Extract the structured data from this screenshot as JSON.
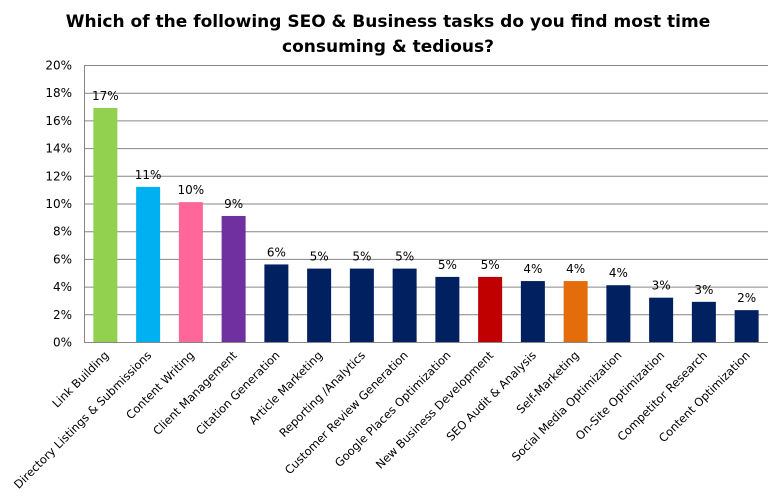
{
  "chart_data": {
    "type": "bar",
    "title_line1": "Which of the following SEO & Business tasks do you find most time",
    "title_line2": "consuming  & tedious?",
    "xlabel": "",
    "ylabel": "",
    "ylim": [
      0,
      20
    ],
    "yticks": [
      "0%",
      "2%",
      "4%",
      "6%",
      "8%",
      "10%",
      "12%",
      "14%",
      "16%",
      "18%",
      "20%"
    ],
    "grid": true,
    "legend": "none",
    "categories": [
      "Link Building",
      "Directory Listings & Submissions",
      "Content Writing",
      "Client Management",
      "Citation Generation",
      "Article Marketing",
      "Reporting /Analytics",
      "Customer Review Generation",
      "Google Places Optimization",
      "New Business Development",
      "SEO Audit & Analysis",
      "Self-Marketing",
      "Social Media Optimization",
      "On-Site Optimization",
      "Competitor Research",
      "Content Optimization"
    ],
    "values": [
      16.9,
      11.2,
      10.1,
      9.1,
      5.6,
      5.3,
      5.3,
      5.3,
      4.7,
      4.7,
      4.4,
      4.4,
      4.1,
      3.2,
      2.9,
      2.3
    ],
    "labels": [
      "17%",
      "11%",
      "10%",
      "9%",
      "6%",
      "5%",
      "5%",
      "5%",
      "5%",
      "5%",
      "4%",
      "4%",
      "4%",
      "3%",
      "3%",
      "2%"
    ],
    "colors": [
      "#92d050",
      "#00b0f0",
      "#ff6699",
      "#7030a0",
      "#002060",
      "#002060",
      "#002060",
      "#002060",
      "#002060",
      "#c00000",
      "#002060",
      "#e46c0a",
      "#002060",
      "#002060",
      "#002060",
      "#002060"
    ]
  }
}
